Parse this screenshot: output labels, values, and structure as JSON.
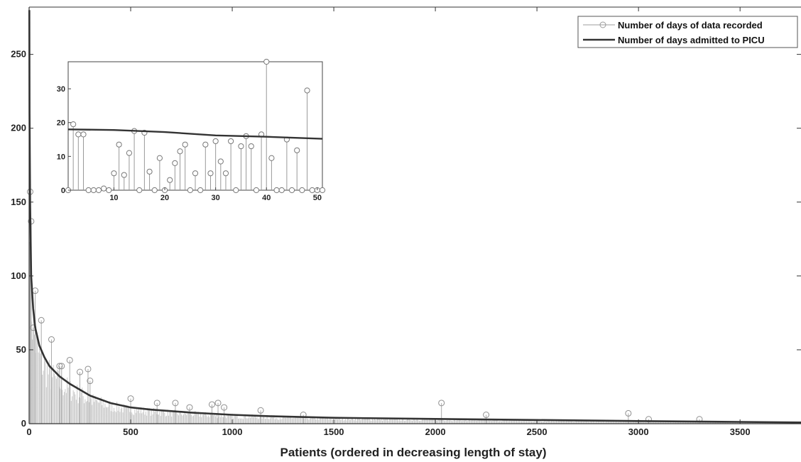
{
  "chart_data": {
    "type": "line",
    "title": "",
    "xlabel": "Patients (ordered in decreasing length of stay)",
    "ylabel": "",
    "xlim": [
      0,
      3800
    ],
    "ylim": [
      0,
      282
    ],
    "xticks": [
      0,
      500,
      1000,
      1500,
      2000,
      2500,
      3000,
      3500
    ],
    "yticks": [
      0,
      50,
      100,
      150,
      200,
      250
    ],
    "legend": {
      "placement": "top-right",
      "entries": [
        {
          "name": "Number of days of data recorded",
          "style": "stem",
          "color": "#b0b0b0"
        },
        {
          "name": "Number of days admitted to PICU",
          "style": "line",
          "color": "#333333"
        }
      ]
    },
    "series": [
      {
        "name": "Number of days admitted to PICU",
        "type": "line",
        "x": [
          1,
          2,
          5,
          10,
          20,
          30,
          50,
          75,
          100,
          150,
          200,
          250,
          300,
          400,
          500,
          600,
          800,
          1000,
          1200,
          1500,
          2000,
          2500,
          3000,
          3500,
          3800
        ],
        "y": [
          280,
          210,
          150,
          100,
          78,
          65,
          53,
          45,
          39,
          32,
          27,
          23,
          19,
          14,
          11,
          9.5,
          7.5,
          6,
          5,
          4,
          3.2,
          2.5,
          1.8,
          1.2,
          0.8
        ]
      },
      {
        "name": "Number of days of data recorded",
        "type": "stem",
        "highlights": [
          {
            "x": 5,
            "y": 157
          },
          {
            "x": 10,
            "y": 137
          },
          {
            "x": 20,
            "y": 65
          },
          {
            "x": 30,
            "y": 90
          },
          {
            "x": 60,
            "y": 70
          },
          {
            "x": 110,
            "y": 57
          },
          {
            "x": 150,
            "y": 39
          },
          {
            "x": 160,
            "y": 39
          },
          {
            "x": 200,
            "y": 43
          },
          {
            "x": 250,
            "y": 35
          },
          {
            "x": 290,
            "y": 37
          },
          {
            "x": 300,
            "y": 29
          },
          {
            "x": 500,
            "y": 17
          },
          {
            "x": 630,
            "y": 14
          },
          {
            "x": 720,
            "y": 14
          },
          {
            "x": 790,
            "y": 11
          },
          {
            "x": 900,
            "y": 13
          },
          {
            "x": 930,
            "y": 14
          },
          {
            "x": 960,
            "y": 11
          },
          {
            "x": 1140,
            "y": 9
          },
          {
            "x": 1350,
            "y": 6
          },
          {
            "x": 2030,
            "y": 14
          },
          {
            "x": 2250,
            "y": 6
          },
          {
            "x": 2950,
            "y": 7
          },
          {
            "x": 3050,
            "y": 3
          },
          {
            "x": 3300,
            "y": 3
          }
        ]
      }
    ],
    "inset": {
      "xlim": [
        1,
        51
      ],
      "ylim": [
        0,
        38
      ],
      "xticks": [
        10,
        20,
        30,
        40,
        50
      ],
      "yticks": [
        0,
        10,
        20,
        30
      ],
      "series": [
        {
          "name": "Number of days of data recorded",
          "type": "stem",
          "x": [
            1,
            2,
            3,
            4,
            5,
            6,
            7,
            8,
            9,
            10,
            11,
            12,
            13,
            14,
            15,
            16,
            17,
            18,
            19,
            20,
            21,
            22,
            23,
            24,
            25,
            26,
            27,
            28,
            29,
            30,
            31,
            32,
            33,
            34,
            35,
            36,
            37,
            38,
            39,
            40,
            41,
            42,
            43,
            44,
            45,
            46,
            47,
            48,
            49,
            50,
            51
          ],
          "y": [
            0,
            19.5,
            16.5,
            16.5,
            0,
            0,
            0,
            0.5,
            0,
            5,
            13.5,
            4.5,
            11,
            17.5,
            0,
            17,
            5.5,
            0,
            9.5,
            0,
            3,
            8,
            11.5,
            13.5,
            0,
            5,
            0,
            13.5,
            5,
            14.5,
            8.5,
            5,
            14.5,
            0,
            13,
            16,
            13,
            0,
            16.5,
            38,
            9.5,
            0,
            0,
            15,
            0,
            11.8,
            0,
            29.5,
            0,
            0,
            0
          ]
        },
        {
          "name": "Number of days admitted to PICU",
          "type": "line",
          "x": [
            1,
            10,
            20,
            30,
            40,
            51
          ],
          "y": [
            18,
            17.8,
            17.2,
            16.2,
            15.8,
            15.2
          ]
        }
      ]
    }
  }
}
